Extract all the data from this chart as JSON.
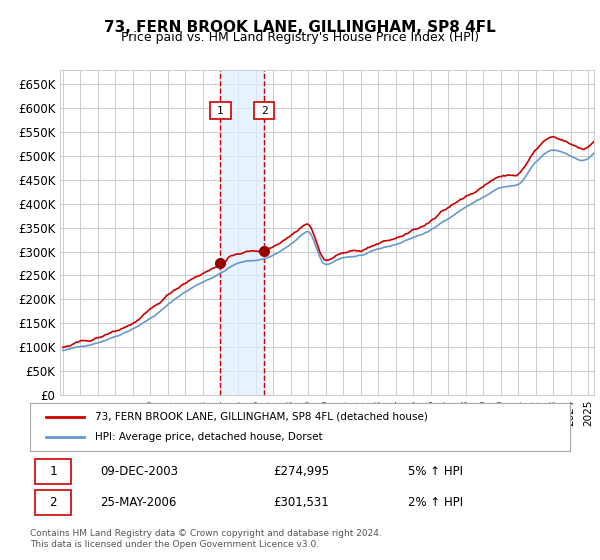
{
  "title": "73, FERN BROOK LANE, GILLINGHAM, SP8 4FL",
  "subtitle": "Price paid vs. HM Land Registry's House Price Index (HPI)",
  "xlabel": "",
  "ylabel": "",
  "ylim": [
    0,
    680000
  ],
  "yticks": [
    0,
    50000,
    100000,
    150000,
    200000,
    250000,
    300000,
    350000,
    400000,
    450000,
    500000,
    550000,
    600000,
    650000
  ],
  "ytick_labels": [
    "£0",
    "£50K",
    "£100K",
    "£150K",
    "£200K",
    "£250K",
    "£300K",
    "£350K",
    "£400K",
    "£450K",
    "£500K",
    "£550K",
    "£600K",
    "£650K"
  ],
  "line1_color": "#cc0000",
  "line2_color": "#6699cc",
  "line1_label": "73, FERN BROOK LANE, GILLINGHAM, SP8 4FL (detached house)",
  "line2_label": "HPI: Average price, detached house, Dorset",
  "purchase1_date_idx": 108,
  "purchase1_price": 274995,
  "purchase2_date_idx": 138,
  "purchase2_price": 301531,
  "vspan_color": "#ddeeff",
  "vline_color": "#cc0000",
  "marker_color": "#990000",
  "grid_color": "#cccccc",
  "bg_color": "#ffffff",
  "footnote": "Contains HM Land Registry data © Crown copyright and database right 2024.\nThis data is licensed under the Open Government Licence v3.0.",
  "legend_label1_table": "09-DEC-2003",
  "legend_price1_table": "£274,995",
  "legend_hpi1_table": "5% ↑ HPI",
  "legend_label2_table": "25-MAY-2006",
  "legend_price2_table": "£301,531",
  "legend_hpi2_table": "2% ↑ HPI"
}
